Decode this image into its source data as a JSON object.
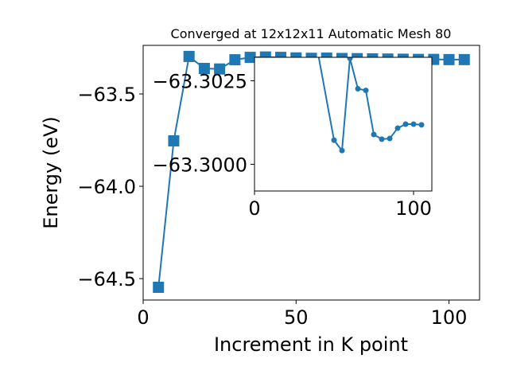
{
  "chart_data": [
    {
      "type": "line",
      "title": "Converged at 12x12x11 Automatic Mesh 80",
      "x_label": "Increment in K point",
      "y_label": "Energy (eV)",
      "x": [
        5,
        10,
        15,
        20,
        25,
        30,
        35,
        40,
        45,
        50,
        55,
        60,
        65,
        70,
        75,
        80,
        85,
        90,
        95,
        100,
        105
      ],
      "series": [
        {
          "color": "#1f77b4",
          "marker": "square",
          "values": [
            -64.547,
            -63.754,
            -63.297,
            -63.362,
            -63.365,
            -63.315,
            -63.302,
            -63.3,
            -63.302,
            -63.305,
            -63.307,
            -63.306,
            -63.308,
            -63.309,
            -63.31,
            -63.311,
            -63.312,
            -63.313,
            -63.313,
            -63.314,
            -63.314
          ]
        }
      ],
      "xlim": [
        0,
        110
      ],
      "ylim": [
        -64.616,
        -63.237
      ],
      "xticks": [
        0,
        50,
        100
      ],
      "yticks": [
        {
          "value": -64.5,
          "label": "−64.5"
        },
        {
          "value": -64.0,
          "label": "−64.0"
        },
        {
          "value": -63.5,
          "label": "−63.5"
        }
      ]
    },
    {
      "type": "line",
      "inset": true,
      "x": [
        40,
        50,
        55,
        60,
        65,
        70,
        75,
        80,
        85,
        90,
        95,
        100,
        105
      ],
      "series": [
        {
          "color": "#1f77b4",
          "marker": "circle",
          "values": [
            -63.3033,
            -63.30072,
            -63.30041,
            -63.30317,
            -63.30226,
            -63.30221,
            -63.30089,
            -63.30075,
            -63.30077,
            -63.30108,
            -63.3012,
            -63.3012,
            -63.30118
          ]
        }
      ],
      "xlim": [
        0,
        111.5
      ],
      "ylim": [
        -63.2992,
        -63.3032
      ],
      "xticks": [
        0,
        100
      ],
      "yticks": [
        {
          "value": -63.3,
          "label": "−63.3000"
        },
        {
          "value": -63.3025,
          "label": "−63.3025"
        }
      ]
    }
  ]
}
